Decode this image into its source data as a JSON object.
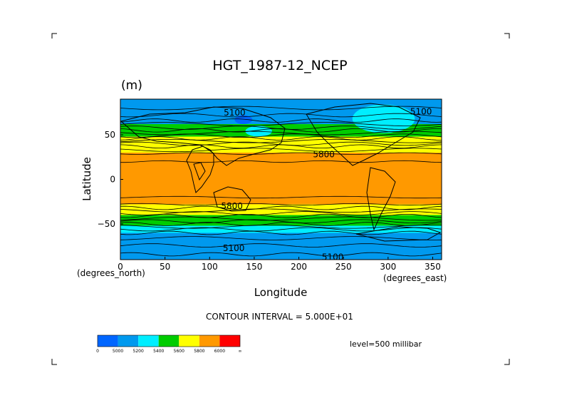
{
  "chart_data": {
    "type": "heatmap",
    "title": "HGT_1987-12_NCEP",
    "units": "(m)",
    "xlabel": "Longitude",
    "ylabel": "Latitude",
    "xunits": "(degrees_east)",
    "yunits": "(degrees_north)",
    "xlim": [
      0,
      360
    ],
    "ylim": [
      -90,
      90
    ],
    "x_ticks": [
      0,
      50,
      100,
      150,
      200,
      250,
      300,
      350
    ],
    "y_ticks": [
      50,
      0,
      -50
    ],
    "x_tick_labels": [
      "0",
      "50",
      "100",
      "150",
      "200",
      "250",
      "300",
      "350"
    ],
    "y_tick_labels": [
      "50",
      "0",
      "−50"
    ],
    "contour_interval": "CONTOUR INTERVAL = 5.000E+01",
    "level": "level=500 millibar",
    "contour_labels": [
      {
        "text": "5100",
        "lon": 128,
        "lat": 75
      },
      {
        "text": "5100",
        "lon": 337,
        "lat": 76
      },
      {
        "text": "5800",
        "lon": 228,
        "lat": 28
      },
      {
        "text": "5800",
        "lon": 125,
        "lat": -30
      },
      {
        "text": "5100",
        "lon": 127,
        "lat": -77
      },
      {
        "text": "5100",
        "lon": 238,
        "lat": -87
      }
    ],
    "colorbar": {
      "colors": [
        "#0066ff",
        "#0099ee",
        "#00eeff",
        "#00cc00",
        "#ffff00",
        "#ff9900",
        "#ff0000"
      ],
      "tick_labels": [
        "0",
        "5000",
        "5200",
        "5400",
        "5600",
        "5800",
        "6000",
        "∞"
      ]
    },
    "field_bands": [
      {
        "lat_from": 90,
        "lat_to": 70,
        "color": "#0099ee"
      },
      {
        "lat_from": 70,
        "lat_to": 62,
        "color": "#0099ee"
      },
      {
        "lat_from": 62,
        "lat_to": 48,
        "color": "#00cc00"
      },
      {
        "lat_from": 48,
        "lat_to": 38,
        "color": "#ffff00"
      },
      {
        "lat_from": 38,
        "lat_to": 30,
        "color": "#ffff00"
      },
      {
        "lat_from": 30,
        "lat_to": -28,
        "color": "#ff9900"
      },
      {
        "lat_from": -28,
        "lat_to": -40,
        "color": "#ffff00"
      },
      {
        "lat_from": -40,
        "lat_to": -52,
        "color": "#00cc00"
      },
      {
        "lat_from": -52,
        "lat_to": -60,
        "color": "#00eeff"
      },
      {
        "lat_from": -60,
        "lat_to": -90,
        "color": "#0099ee"
      }
    ],
    "field_patches": [
      {
        "lon_from": 260,
        "lon_to": 330,
        "lat_from": 84,
        "lat_to": 52,
        "color": "#00eeff"
      },
      {
        "lon_from": 140,
        "lon_to": 170,
        "lat_from": 60,
        "lat_to": 48,
        "color": "#00eeff"
      },
      {
        "lon_from": 128,
        "lon_to": 148,
        "lat_from": 72,
        "lat_to": 62,
        "color": "#0066ff"
      }
    ]
  }
}
